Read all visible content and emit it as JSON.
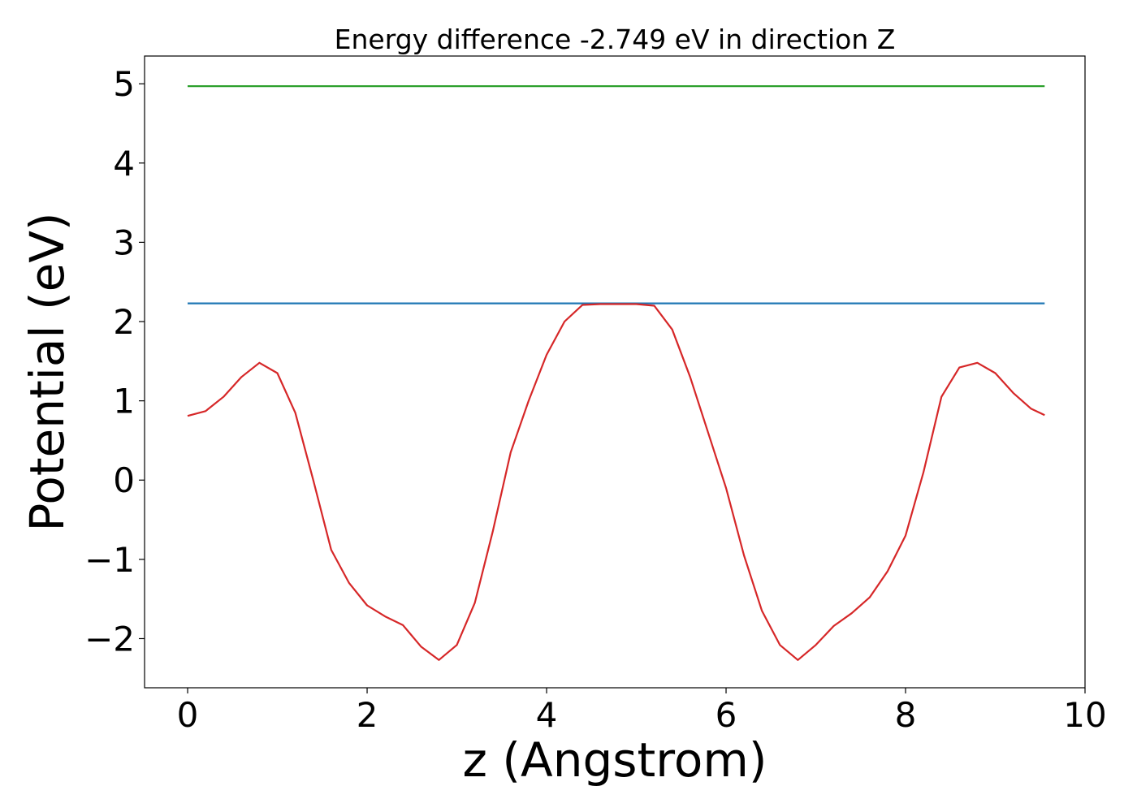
{
  "chart_data": {
    "type": "line",
    "title": "Energy difference -2.749 eV in direction Z",
    "xlabel": "z (Angstrom)",
    "ylabel": "Potential (eV)",
    "xlim": [
      -0.48,
      10.0
    ],
    "ylim": [
      -2.62,
      5.35
    ],
    "x_ticks": [
      0,
      2,
      4,
      6,
      8,
      10
    ],
    "x_tick_labels": [
      "0",
      "2",
      "4",
      "6",
      "8",
      "10"
    ],
    "y_ticks": [
      -2,
      -1,
      0,
      1,
      2,
      3,
      4,
      5
    ],
    "y_tick_labels": [
      "−2",
      "−1",
      "0",
      "1",
      "2",
      "3",
      "4",
      "5"
    ],
    "grid": false,
    "series": [
      {
        "color": "#2ca02c",
        "x": [
          0,
          9.55
        ],
        "y": [
          4.97,
          4.97
        ]
      },
      {
        "color": "#1f77b4",
        "x": [
          0,
          9.55
        ],
        "y": [
          2.23,
          2.23
        ]
      },
      {
        "color": "#d62728",
        "x": [
          0,
          0.2,
          0.4,
          0.6,
          0.8,
          1.0,
          1.2,
          1.4,
          1.6,
          1.8,
          2.0,
          2.2,
          2.4,
          2.6,
          2.8,
          3.0,
          3.2,
          3.4,
          3.6,
          3.8,
          4.0,
          4.2,
          4.4,
          4.6,
          4.8,
          5.0,
          5.2,
          5.4,
          5.6,
          5.8,
          6.0,
          6.2,
          6.4,
          6.6,
          6.8,
          7.0,
          7.2,
          7.4,
          7.6,
          7.8,
          8.0,
          8.2,
          8.4,
          8.6,
          8.8,
          9.0,
          9.2,
          9.4,
          9.55
        ],
        "y": [
          0.81,
          0.87,
          1.05,
          1.3,
          1.48,
          1.35,
          0.85,
          0.0,
          -0.88,
          -1.3,
          -1.58,
          -1.72,
          -1.83,
          -2.1,
          -2.27,
          -2.08,
          -1.55,
          -0.65,
          0.35,
          1.0,
          1.58,
          2.0,
          2.21,
          2.22,
          2.22,
          2.22,
          2.2,
          1.9,
          1.3,
          0.6,
          -0.1,
          -0.95,
          -1.65,
          -2.08,
          -2.27,
          -2.08,
          -1.84,
          -1.68,
          -1.48,
          -1.15,
          -0.7,
          0.1,
          1.05,
          1.42,
          1.48,
          1.35,
          1.1,
          0.9,
          0.82
        ]
      }
    ]
  }
}
